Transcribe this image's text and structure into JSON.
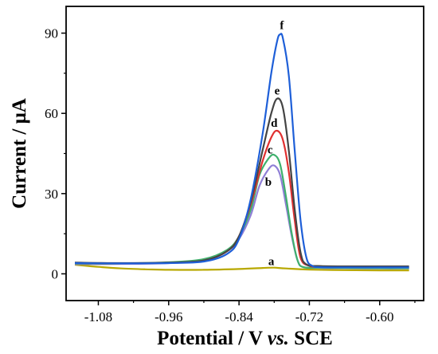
{
  "chart_data": {
    "type": "line",
    "xlabel_main": "Potential / V ",
    "xlabel_italic": "vs.",
    "xlabel_tail": " SCE",
    "ylabel": "Current / μA",
    "xlim": [
      -1.135,
      -0.525
    ],
    "ylim": [
      -10,
      100
    ],
    "x_ticks": [
      -1.08,
      -0.96,
      -0.84,
      -0.72,
      -0.6
    ],
    "x_tick_labels": [
      "-1.08",
      "-0.96",
      "-0.84",
      "-0.72",
      "-0.60"
    ],
    "y_ticks": [
      0,
      30,
      60,
      90
    ],
    "y_tick_labels": [
      "0",
      "30",
      "60",
      "90"
    ],
    "grid": false,
    "series": [
      {
        "label": "a",
        "color": "#b8a800",
        "points": [
          [
            -1.12,
            3.4
          ],
          [
            -1.08,
            2.6
          ],
          [
            -1.04,
            2.0
          ],
          [
            -1.0,
            1.7
          ],
          [
            -0.96,
            1.5
          ],
          [
            -0.9,
            1.5
          ],
          [
            -0.84,
            1.8
          ],
          [
            -0.8,
            2.2
          ],
          [
            -0.78,
            2.3
          ],
          [
            -0.76,
            2.0
          ],
          [
            -0.72,
            1.6
          ],
          [
            -0.66,
            1.4
          ],
          [
            -0.6,
            1.3
          ],
          [
            -0.55,
            1.3
          ]
        ]
      },
      {
        "label": "b",
        "color": "#8f7fd6",
        "points": [
          [
            -1.12,
            3.6
          ],
          [
            -1.04,
            3.7
          ],
          [
            -0.96,
            4.0
          ],
          [
            -0.9,
            5.0
          ],
          [
            -0.86,
            8.5
          ],
          [
            -0.84,
            13
          ],
          [
            -0.82,
            22
          ],
          [
            -0.805,
            33
          ],
          [
            -0.79,
            39
          ],
          [
            -0.78,
            40.5
          ],
          [
            -0.77,
            37
          ],
          [
            -0.76,
            26
          ],
          [
            -0.75,
            14
          ],
          [
            -0.74,
            5
          ],
          [
            -0.73,
            2.5
          ],
          [
            -0.7,
            2.2
          ],
          [
            -0.65,
            2.1
          ],
          [
            -0.6,
            2.0
          ],
          [
            -0.55,
            2.0
          ]
        ]
      },
      {
        "label": "c",
        "color": "#3fb06d",
        "points": [
          [
            -1.12,
            3.8
          ],
          [
            -1.04,
            3.9
          ],
          [
            -0.96,
            4.3
          ],
          [
            -0.9,
            5.5
          ],
          [
            -0.86,
            9
          ],
          [
            -0.84,
            14
          ],
          [
            -0.82,
            24
          ],
          [
            -0.805,
            37
          ],
          [
            -0.79,
            43
          ],
          [
            -0.78,
            44.5
          ],
          [
            -0.77,
            41
          ],
          [
            -0.76,
            29
          ],
          [
            -0.75,
            15
          ],
          [
            -0.74,
            5
          ],
          [
            -0.73,
            2.5
          ],
          [
            -0.7,
            2.3
          ],
          [
            -0.65,
            2.2
          ],
          [
            -0.6,
            2.1
          ],
          [
            -0.55,
            2.1
          ]
        ]
      },
      {
        "label": "d",
        "color": "#e03030",
        "points": [
          [
            -1.12,
            4.0
          ],
          [
            -1.04,
            3.9
          ],
          [
            -0.96,
            4.1
          ],
          [
            -0.9,
            5.0
          ],
          [
            -0.86,
            8.5
          ],
          [
            -0.84,
            14
          ],
          [
            -0.82,
            26
          ],
          [
            -0.8,
            42
          ],
          [
            -0.785,
            51
          ],
          [
            -0.775,
            53.5
          ],
          [
            -0.765,
            50
          ],
          [
            -0.755,
            38
          ],
          [
            -0.745,
            20
          ],
          [
            -0.735,
            6
          ],
          [
            -0.72,
            3
          ],
          [
            -0.7,
            2.6
          ],
          [
            -0.65,
            2.5
          ],
          [
            -0.6,
            2.4
          ],
          [
            -0.55,
            2.4
          ]
        ]
      },
      {
        "label": "e",
        "color": "#444444",
        "points": [
          [
            -1.12,
            4.2
          ],
          [
            -1.04,
            4.0
          ],
          [
            -0.96,
            4.2
          ],
          [
            -0.9,
            5.0
          ],
          [
            -0.86,
            8.5
          ],
          [
            -0.84,
            14
          ],
          [
            -0.82,
            27
          ],
          [
            -0.8,
            46
          ],
          [
            -0.785,
            60
          ],
          [
            -0.775,
            65.5
          ],
          [
            -0.765,
            62
          ],
          [
            -0.755,
            46
          ],
          [
            -0.745,
            24
          ],
          [
            -0.735,
            8
          ],
          [
            -0.725,
            3.5
          ],
          [
            -0.7,
            2.9
          ],
          [
            -0.65,
            2.8
          ],
          [
            -0.6,
            2.8
          ],
          [
            -0.55,
            2.8
          ]
        ]
      },
      {
        "label": "f",
        "color": "#1e5fd8",
        "points": [
          [
            -1.12,
            4.0
          ],
          [
            -1.04,
            3.9
          ],
          [
            -0.96,
            4.0
          ],
          [
            -0.9,
            4.6
          ],
          [
            -0.86,
            7.5
          ],
          [
            -0.84,
            13
          ],
          [
            -0.82,
            28
          ],
          [
            -0.8,
            52
          ],
          [
            -0.785,
            75
          ],
          [
            -0.775,
            87
          ],
          [
            -0.77,
            89.5
          ],
          [
            -0.765,
            88
          ],
          [
            -0.755,
            74
          ],
          [
            -0.745,
            46
          ],
          [
            -0.735,
            20
          ],
          [
            -0.725,
            6
          ],
          [
            -0.715,
            3
          ],
          [
            -0.7,
            2.5
          ],
          [
            -0.65,
            2.4
          ],
          [
            -0.6,
            2.4
          ],
          [
            -0.55,
            2.4
          ]
        ]
      }
    ],
    "annotations": [
      {
        "text": "a",
        "x": -0.785,
        "y": 3.2
      },
      {
        "text": "b",
        "x": -0.79,
        "y": 33
      },
      {
        "text": "c",
        "x": -0.787,
        "y": 45
      },
      {
        "text": "d",
        "x": -0.78,
        "y": 55
      },
      {
        "text": "e",
        "x": -0.775,
        "y": 67
      },
      {
        "text": "f",
        "x": -0.767,
        "y": 91.5
      }
    ]
  }
}
